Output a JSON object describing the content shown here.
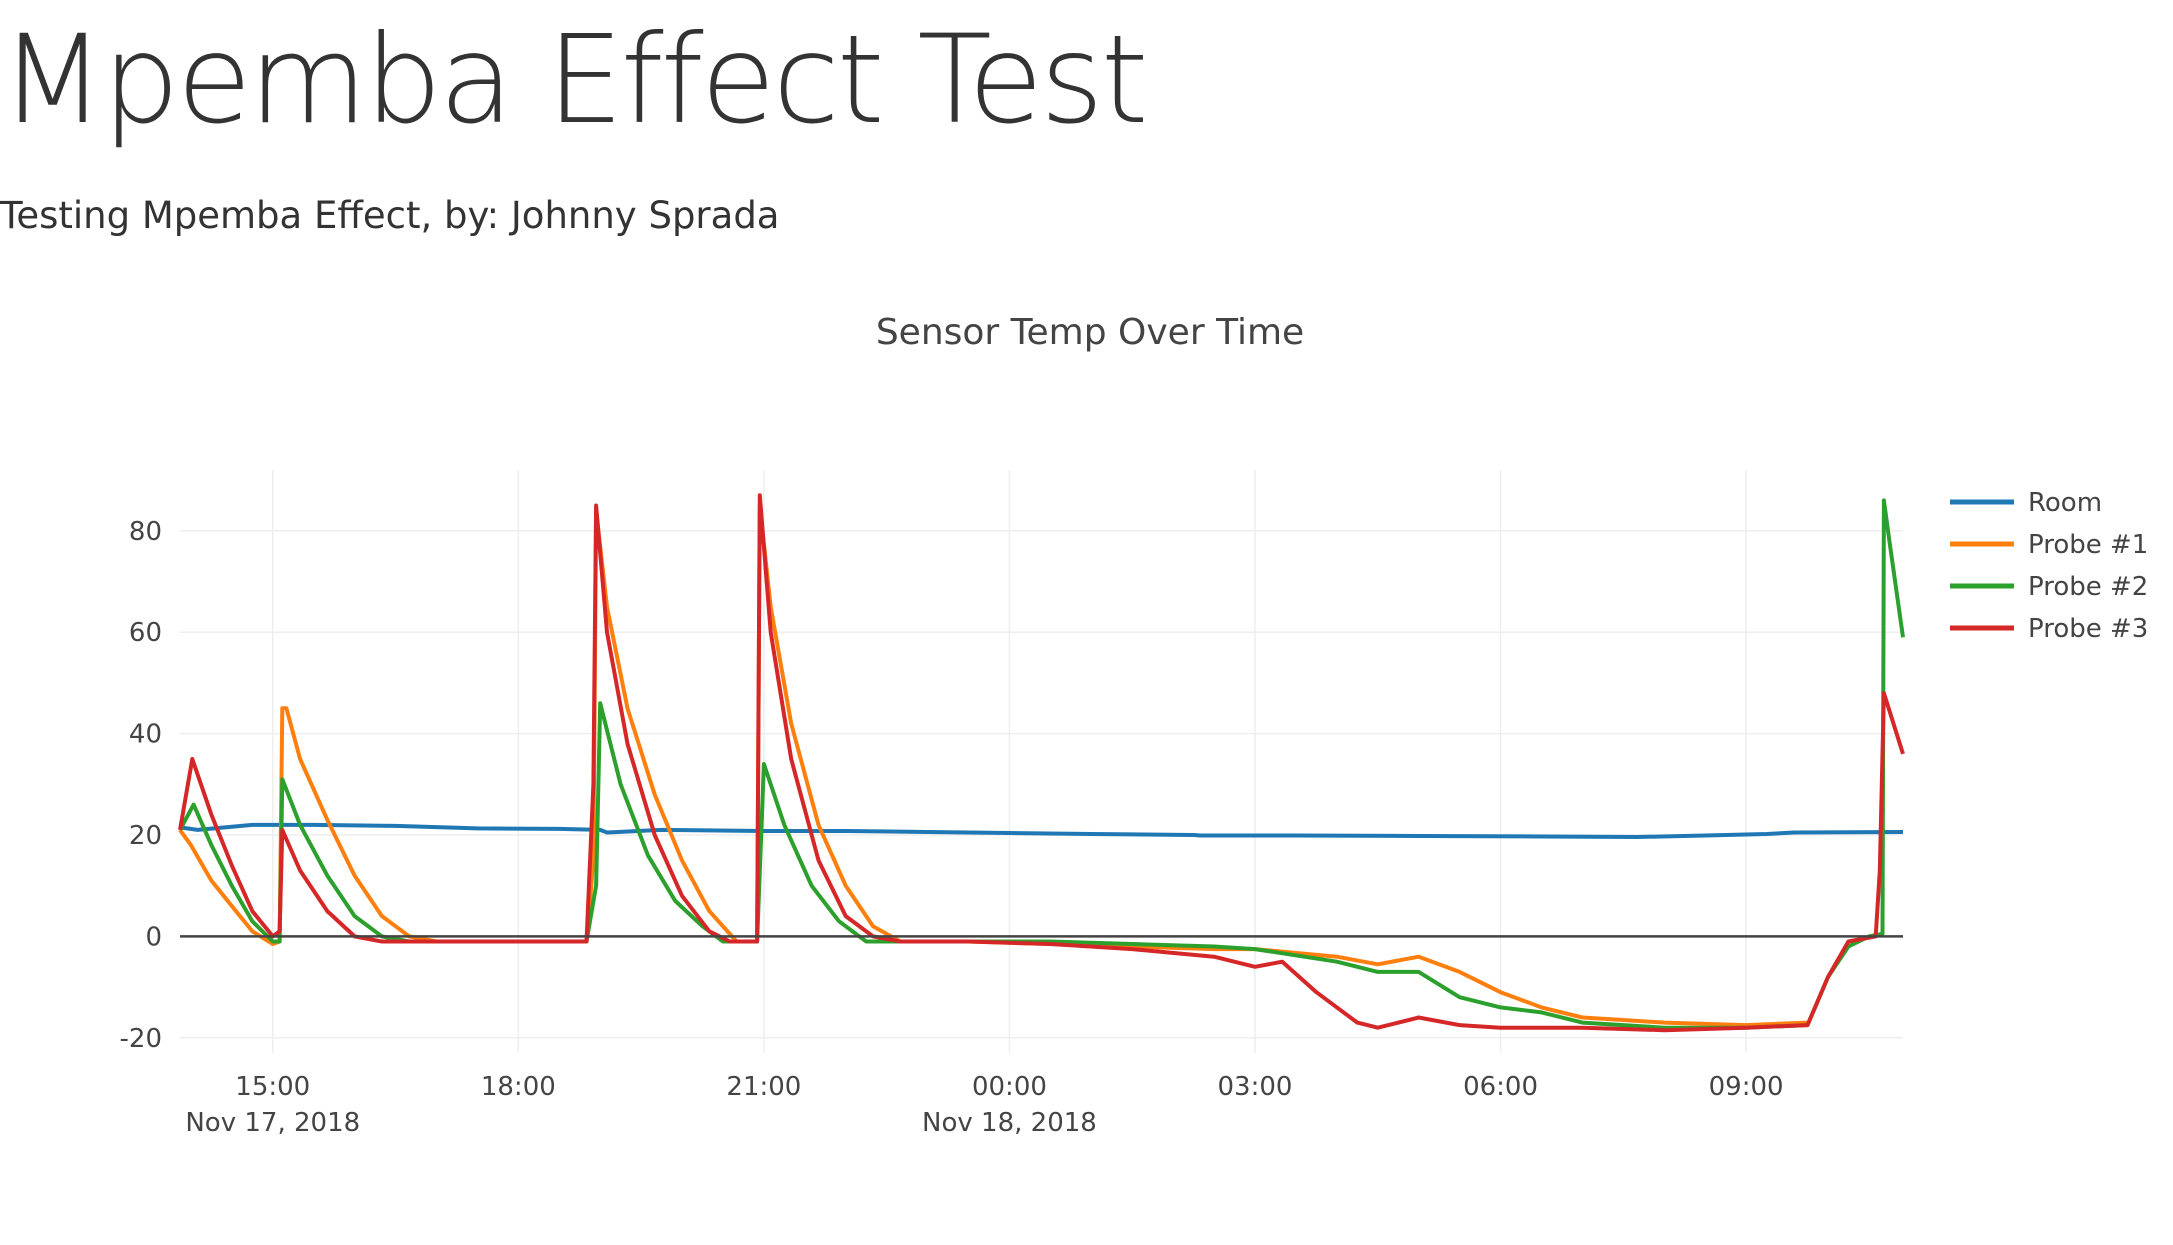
{
  "page": {
    "title": "Mpemba Effect Test",
    "subtitle": "Testing Mpemba Effect, by: Johnny Sprada"
  },
  "chart_data": {
    "type": "line",
    "title": "Sensor Temp Over Time",
    "xlabel": "",
    "ylabel": "",
    "x_range": [
      "2018-11-17 13:52",
      "2018-11-18 10:55"
    ],
    "ylim": [
      -23,
      92
    ],
    "y_ticks": [
      -20,
      0,
      20,
      40,
      60,
      80
    ],
    "x_ticks": [
      {
        "time": "2018-11-17 15:00",
        "label": "15:00",
        "sub": "Nov 17, 2018"
      },
      {
        "time": "2018-11-17 18:00",
        "label": "18:00",
        "sub": ""
      },
      {
        "time": "2018-11-17 21:00",
        "label": "21:00",
        "sub": ""
      },
      {
        "time": "2018-11-18 00:00",
        "label": "00:00",
        "sub": "Nov 18, 2018"
      },
      {
        "time": "2018-11-18 03:00",
        "label": "03:00",
        "sub": ""
      },
      {
        "time": "2018-11-18 06:00",
        "label": "06:00",
        "sub": ""
      },
      {
        "time": "2018-11-18 09:00",
        "label": "09:00",
        "sub": ""
      }
    ],
    "grid": true,
    "zero_line": true,
    "legend_position": "top-right",
    "series": [
      {
        "name": "Room",
        "color": "#1f77b4",
        "points": [
          [
            "2018-11-17 13:52",
            21.5
          ],
          [
            "2018-11-17 14:05",
            21.0
          ],
          [
            "2018-11-17 14:45",
            22.0
          ],
          [
            "2018-11-17 15:30",
            22.0
          ],
          [
            "2018-11-17 16:30",
            21.8
          ],
          [
            "2018-11-17 17:30",
            21.3
          ],
          [
            "2018-11-17 18:30",
            21.2
          ],
          [
            "2018-11-17 19:00",
            21.0
          ],
          [
            "2018-11-17 19:05",
            20.5
          ],
          [
            "2018-11-17 19:45",
            21.0
          ],
          [
            "2018-11-17 21:00",
            20.8
          ],
          [
            "2018-11-17 22:00",
            20.8
          ],
          [
            "2018-11-17 23:00",
            20.6
          ],
          [
            "2018-11-18 00:00",
            20.4
          ],
          [
            "2018-11-18 01:00",
            20.2
          ],
          [
            "2018-11-18 02:15",
            20.0
          ],
          [
            "2018-11-18 02:20",
            19.9
          ],
          [
            "2018-11-18 03:30",
            19.9
          ],
          [
            "2018-11-18 05:00",
            19.8
          ],
          [
            "2018-11-18 06:30",
            19.7
          ],
          [
            "2018-11-18 07:40",
            19.6
          ],
          [
            "2018-11-18 08:30",
            19.9
          ],
          [
            "2018-11-18 09:15",
            20.2
          ],
          [
            "2018-11-18 09:35",
            20.5
          ],
          [
            "2018-11-18 10:55",
            20.6
          ]
        ]
      },
      {
        "name": "Probe #1",
        "color": "#ff7f0e",
        "points": [
          [
            "2018-11-17 13:52",
            21.0
          ],
          [
            "2018-11-17 14:00",
            18.0
          ],
          [
            "2018-11-17 14:15",
            11.0
          ],
          [
            "2018-11-17 14:30",
            6.0
          ],
          [
            "2018-11-17 14:45",
            1.0
          ],
          [
            "2018-11-17 15:00",
            -1.5
          ],
          [
            "2018-11-17 15:05",
            -1.0
          ],
          [
            "2018-11-17 15:07",
            45.0
          ],
          [
            "2018-11-17 15:10",
            45.0
          ],
          [
            "2018-11-17 15:20",
            35.0
          ],
          [
            "2018-11-17 15:40",
            23.0
          ],
          [
            "2018-11-17 16:00",
            12.0
          ],
          [
            "2018-11-17 16:20",
            4.0
          ],
          [
            "2018-11-17 16:40",
            0.0
          ],
          [
            "2018-11-17 17:00",
            -1.0
          ],
          [
            "2018-11-17 18:00",
            -1.0
          ],
          [
            "2018-11-17 18:50",
            -1.0
          ],
          [
            "2018-11-17 18:55",
            15.0
          ],
          [
            "2018-11-17 18:57",
            84.0
          ],
          [
            "2018-11-17 19:05",
            65.0
          ],
          [
            "2018-11-17 19:20",
            45.0
          ],
          [
            "2018-11-17 19:40",
            28.0
          ],
          [
            "2018-11-17 20:00",
            15.0
          ],
          [
            "2018-11-17 20:20",
            5.0
          ],
          [
            "2018-11-17 20:40",
            -1.0
          ],
          [
            "2018-11-17 20:55",
            -1.0
          ],
          [
            "2018-11-17 20:57",
            85.0
          ],
          [
            "2018-11-17 21:05",
            65.0
          ],
          [
            "2018-11-17 21:20",
            42.0
          ],
          [
            "2018-11-17 21:40",
            22.0
          ],
          [
            "2018-11-17 22:00",
            10.0
          ],
          [
            "2018-11-17 22:20",
            2.0
          ],
          [
            "2018-11-17 22:40",
            -1.0
          ],
          [
            "2018-11-17 23:30",
            -1.0
          ],
          [
            "2018-11-18 00:30",
            -1.5
          ],
          [
            "2018-11-18 01:30",
            -2.0
          ],
          [
            "2018-11-18 02:30",
            -2.5
          ],
          [
            "2018-11-18 03:00",
            -2.5
          ],
          [
            "2018-11-18 04:00",
            -4.0
          ],
          [
            "2018-11-18 04:30",
            -5.5
          ],
          [
            "2018-11-18 05:00",
            -4.0
          ],
          [
            "2018-11-18 05:30",
            -7.0
          ],
          [
            "2018-11-18 06:00",
            -11.0
          ],
          [
            "2018-11-18 06:30",
            -14.0
          ],
          [
            "2018-11-18 07:00",
            -16.0
          ],
          [
            "2018-11-18 07:30",
            -16.5
          ],
          [
            "2018-11-18 08:00",
            -17.0
          ],
          [
            "2018-11-18 09:00",
            -17.5
          ],
          [
            "2018-11-18 09:45",
            -17.0
          ]
        ]
      },
      {
        "name": "Probe #2",
        "color": "#2ca02c",
        "points": [
          [
            "2018-11-17 13:52",
            21.0
          ],
          [
            "2018-11-17 14:02",
            26.0
          ],
          [
            "2018-11-17 14:15",
            18.0
          ],
          [
            "2018-11-17 14:30",
            10.0
          ],
          [
            "2018-11-17 14:45",
            3.0
          ],
          [
            "2018-11-17 15:00",
            -1.0
          ],
          [
            "2018-11-17 15:05",
            -1.0
          ],
          [
            "2018-11-17 15:07",
            31.0
          ],
          [
            "2018-11-17 15:20",
            22.0
          ],
          [
            "2018-11-17 15:40",
            12.0
          ],
          [
            "2018-11-17 16:00",
            4.0
          ],
          [
            "2018-11-17 16:20",
            0.0
          ],
          [
            "2018-11-17 16:40",
            -1.0
          ],
          [
            "2018-11-17 18:00",
            -1.0
          ],
          [
            "2018-11-17 18:50",
            -1.0
          ],
          [
            "2018-11-17 18:57",
            10.0
          ],
          [
            "2018-11-17 19:00",
            46.0
          ],
          [
            "2018-11-17 19:15",
            30.0
          ],
          [
            "2018-11-17 19:35",
            16.0
          ],
          [
            "2018-11-17 19:55",
            7.0
          ],
          [
            "2018-11-17 20:15",
            2.0
          ],
          [
            "2018-11-17 20:30",
            -1.0
          ],
          [
            "2018-11-17 20:55",
            -1.0
          ],
          [
            "2018-11-17 21:00",
            34.0
          ],
          [
            "2018-11-17 21:15",
            22.0
          ],
          [
            "2018-11-17 21:35",
            10.0
          ],
          [
            "2018-11-17 21:55",
            3.0
          ],
          [
            "2018-11-17 22:15",
            -1.0
          ],
          [
            "2018-11-17 23:30",
            -1.0
          ],
          [
            "2018-11-18 00:30",
            -1.0
          ],
          [
            "2018-11-18 01:30",
            -1.5
          ],
          [
            "2018-11-18 02:30",
            -2.0
          ],
          [
            "2018-11-18 03:00",
            -2.5
          ],
          [
            "2018-11-18 04:00",
            -5.0
          ],
          [
            "2018-11-18 04:30",
            -7.0
          ],
          [
            "2018-11-18 05:00",
            -7.0
          ],
          [
            "2018-11-18 05:30",
            -12.0
          ],
          [
            "2018-11-18 06:00",
            -14.0
          ],
          [
            "2018-11-18 06:30",
            -15.0
          ],
          [
            "2018-11-18 07:00",
            -17.0
          ],
          [
            "2018-11-18 08:00",
            -18.0
          ],
          [
            "2018-11-18 09:00",
            -18.0
          ],
          [
            "2018-11-18 09:45",
            -17.5
          ],
          [
            "2018-11-18 10:00",
            -8.0
          ],
          [
            "2018-11-18 10:15",
            -2.0
          ],
          [
            "2018-11-18 10:30",
            0.0
          ],
          [
            "2018-11-18 10:40",
            0.5
          ],
          [
            "2018-11-18 10:41",
            86.0
          ],
          [
            "2018-11-18 10:45",
            78.0
          ],
          [
            "2018-11-18 10:55",
            59.0
          ]
        ]
      },
      {
        "name": "Probe #3",
        "color": "#d62728",
        "points": [
          [
            "2018-11-17 13:52",
            21.0
          ],
          [
            "2018-11-17 14:01",
            35.0
          ],
          [
            "2018-11-17 14:15",
            24.0
          ],
          [
            "2018-11-17 14:30",
            14.0
          ],
          [
            "2018-11-17 14:45",
            5.0
          ],
          [
            "2018-11-17 15:00",
            0.0
          ],
          [
            "2018-11-17 15:05",
            1.0
          ],
          [
            "2018-11-17 15:07",
            21.0
          ],
          [
            "2018-11-17 15:20",
            13.0
          ],
          [
            "2018-11-17 15:40",
            5.0
          ],
          [
            "2018-11-17 16:00",
            0.0
          ],
          [
            "2018-11-17 16:20",
            -1.0
          ],
          [
            "2018-11-17 18:00",
            -1.0
          ],
          [
            "2018-11-17 18:50",
            -1.0
          ],
          [
            "2018-11-17 18:55",
            30.0
          ],
          [
            "2018-11-17 18:57",
            85.0
          ],
          [
            "2018-11-17 19:05",
            60.0
          ],
          [
            "2018-11-17 19:20",
            38.0
          ],
          [
            "2018-11-17 19:40",
            20.0
          ],
          [
            "2018-11-17 20:00",
            8.0
          ],
          [
            "2018-11-17 20:20",
            1.0
          ],
          [
            "2018-11-17 20:35",
            -1.0
          ],
          [
            "2018-11-17 20:55",
            -1.0
          ],
          [
            "2018-11-17 20:57",
            87.0
          ],
          [
            "2018-11-17 21:05",
            60.0
          ],
          [
            "2018-11-17 21:20",
            35.0
          ],
          [
            "2018-11-17 21:40",
            15.0
          ],
          [
            "2018-11-17 22:00",
            4.0
          ],
          [
            "2018-11-17 22:20",
            0.0
          ],
          [
            "2018-11-17 22:40",
            -1.0
          ],
          [
            "2018-11-17 23:30",
            -1.0
          ],
          [
            "2018-11-18 00:30",
            -1.5
          ],
          [
            "2018-11-18 01:30",
            -2.5
          ],
          [
            "2018-11-18 02:30",
            -4.0
          ],
          [
            "2018-11-18 03:00",
            -6.0
          ],
          [
            "2018-11-18 03:20",
            -5.0
          ],
          [
            "2018-11-18 03:45",
            -11.0
          ],
          [
            "2018-11-18 04:15",
            -17.0
          ],
          [
            "2018-11-18 04:30",
            -18.0
          ],
          [
            "2018-11-18 05:00",
            -16.0
          ],
          [
            "2018-11-18 05:30",
            -17.5
          ],
          [
            "2018-11-18 06:00",
            -18.0
          ],
          [
            "2018-11-18 07:00",
            -18.0
          ],
          [
            "2018-11-18 08:00",
            -18.5
          ],
          [
            "2018-11-18 09:00",
            -18.0
          ],
          [
            "2018-11-18 09:45",
            -17.5
          ],
          [
            "2018-11-18 10:00",
            -8.0
          ],
          [
            "2018-11-18 10:15",
            -1.0
          ],
          [
            "2018-11-18 10:35",
            0.0
          ],
          [
            "2018-11-18 10:38",
            13.0
          ],
          [
            "2018-11-18 10:41",
            48.0
          ],
          [
            "2018-11-18 10:55",
            36.0
          ]
        ]
      }
    ]
  }
}
